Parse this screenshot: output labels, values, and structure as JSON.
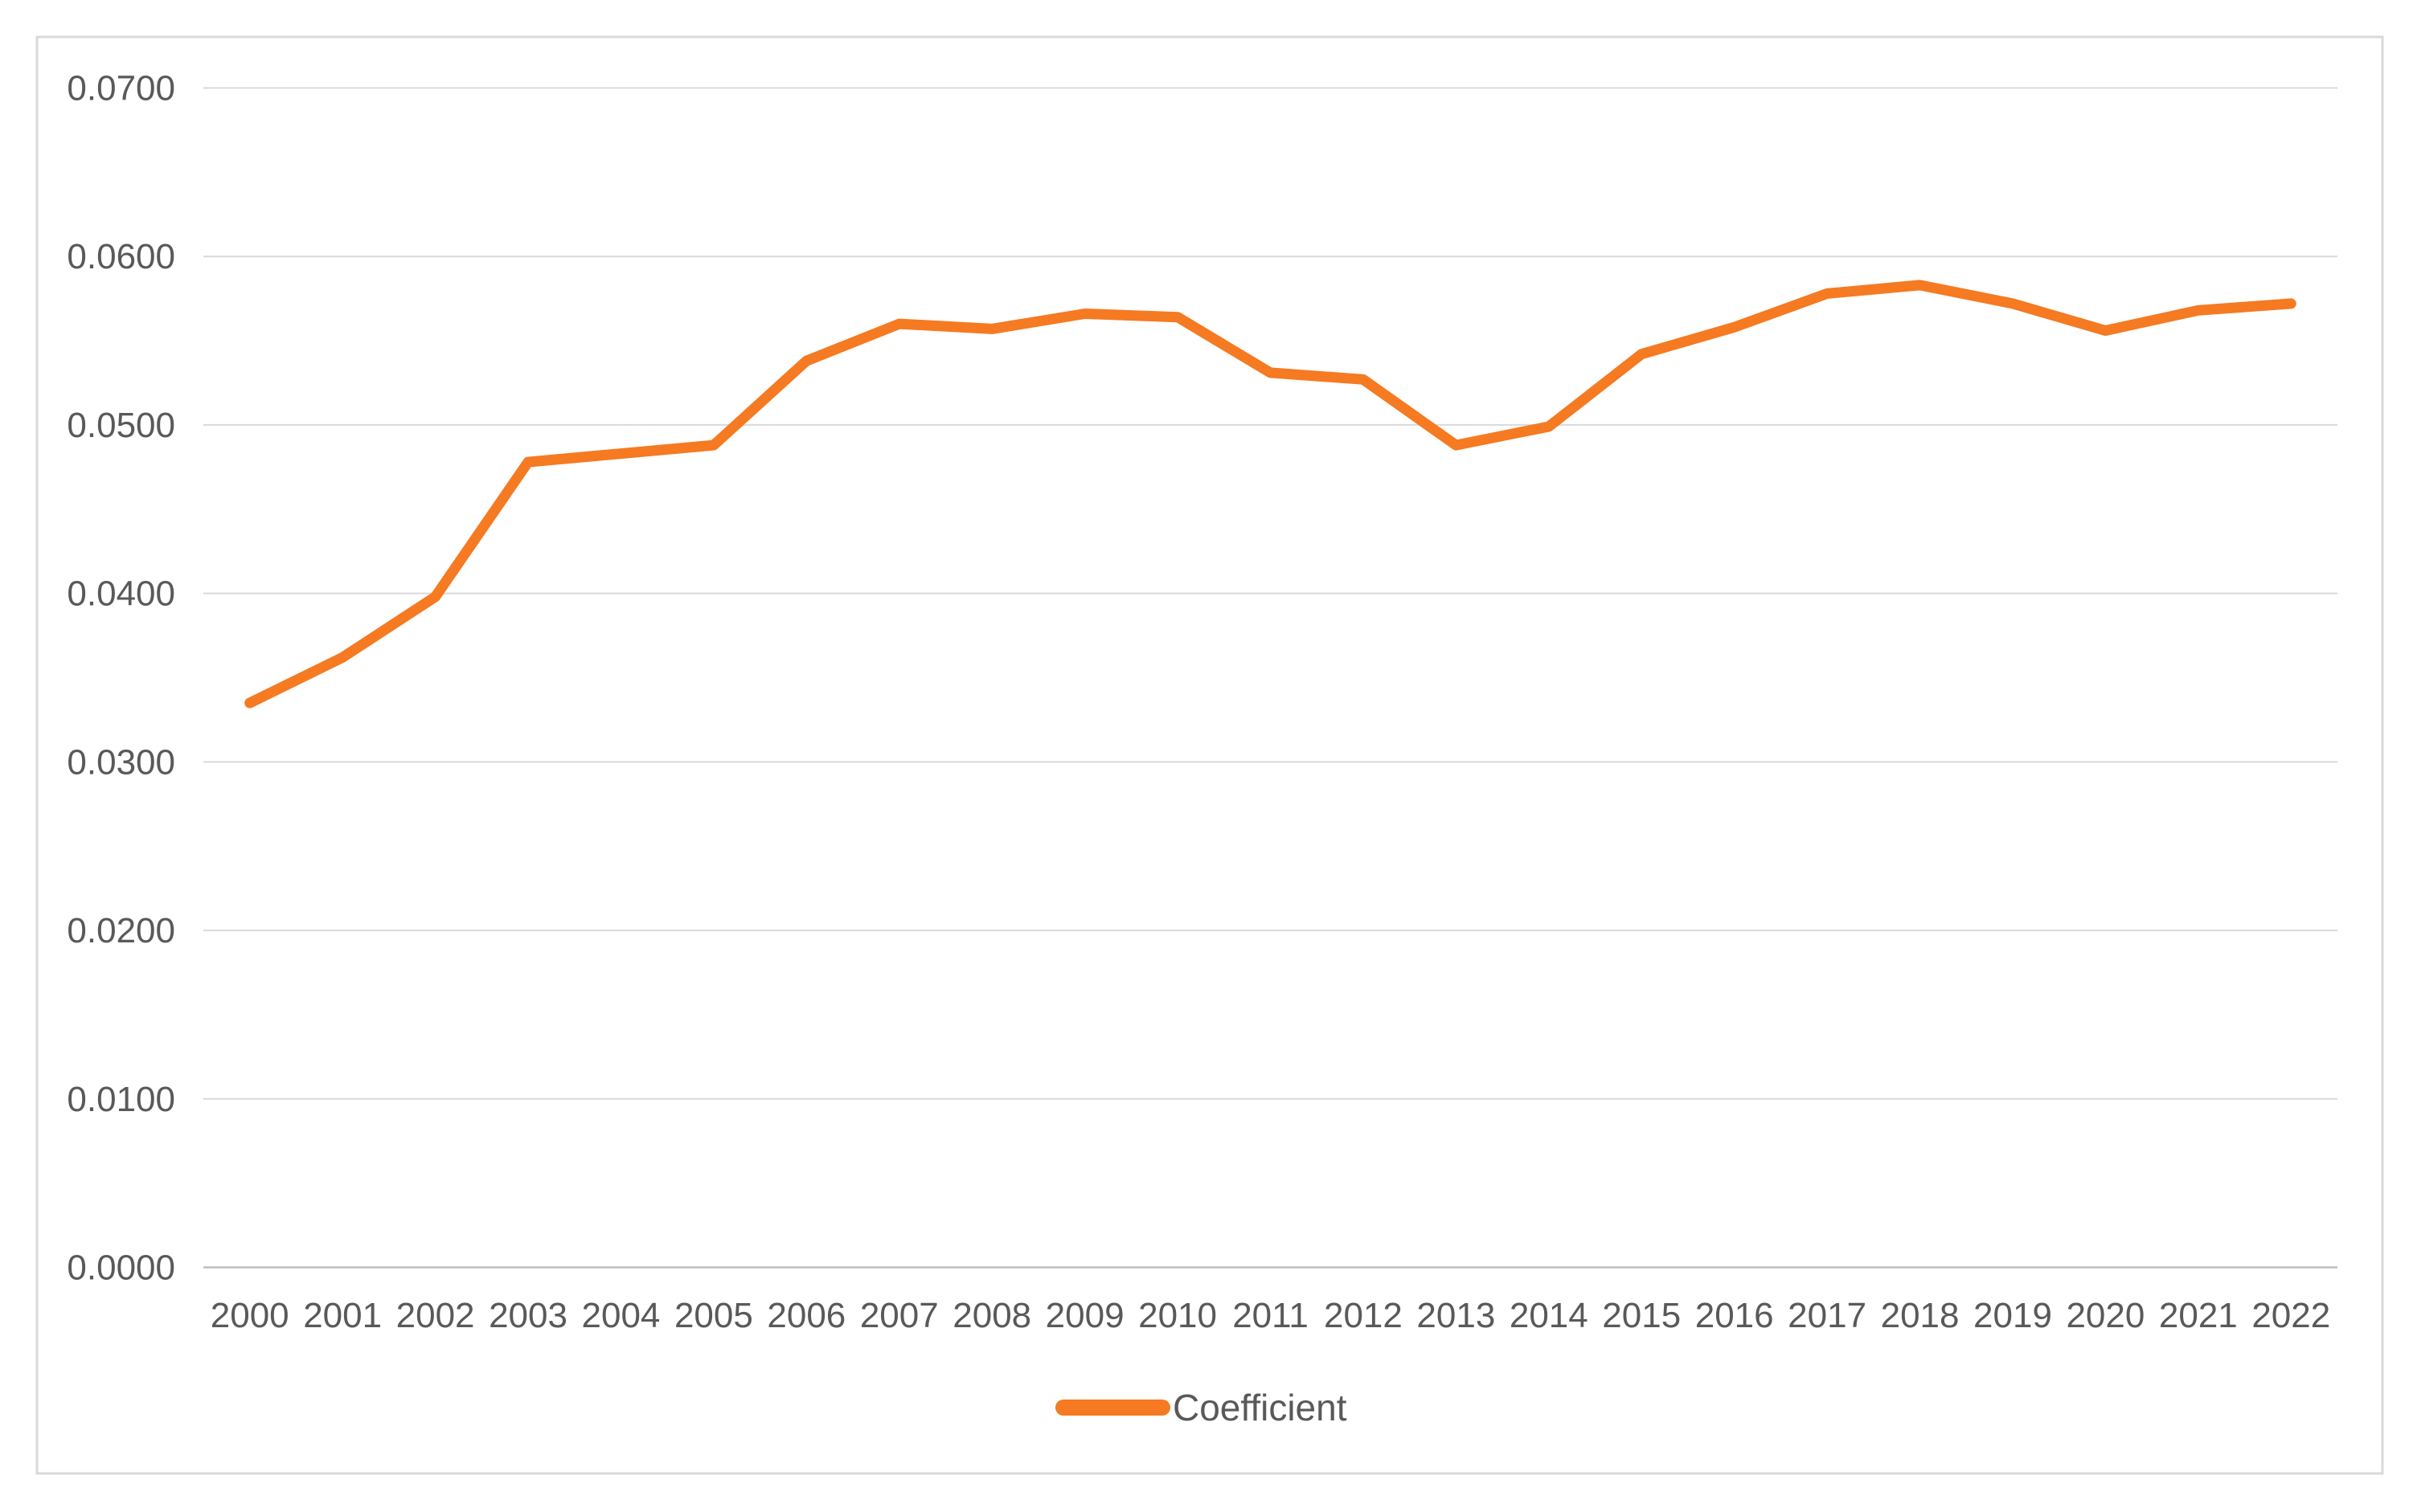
{
  "chart_data": {
    "type": "line",
    "title": "",
    "xlabel": "",
    "ylabel": "",
    "x": [
      2000,
      2001,
      2002,
      2003,
      2004,
      2005,
      2006,
      2007,
      2008,
      2009,
      2010,
      2011,
      2012,
      2013,
      2014,
      2015,
      2016,
      2017,
      2018,
      2019,
      2020,
      2021,
      2022
    ],
    "series": [
      {
        "name": "Coefficient",
        "values": [
          0.0335,
          0.0362,
          0.0398,
          0.0478,
          0.0483,
          0.0488,
          0.0538,
          0.056,
          0.0557,
          0.0566,
          0.0564,
          0.0531,
          0.0527,
          0.0488,
          0.0499,
          0.0542,
          0.0558,
          0.0578,
          0.0583,
          0.0572,
          0.0556,
          0.0568,
          0.0572
        ]
      }
    ],
    "ylim": [
      0.0,
      0.07
    ],
    "ytick_step": 0.01,
    "ytick_decimals": 4,
    "ytick_labels": [
      "0.0000",
      "0.0100",
      "0.0200",
      "0.0300",
      "0.0400",
      "0.0500",
      "0.0600",
      "0.0700"
    ],
    "grid": "horizontal",
    "legend_position": "bottom-center",
    "colors": {
      "series": "#F57A22",
      "gridline": "#D9D9D9",
      "axis_line": "#BFBFBF",
      "tick_label": "#595959",
      "border": "#D9D9D9",
      "background": "#FFFFFF"
    }
  }
}
